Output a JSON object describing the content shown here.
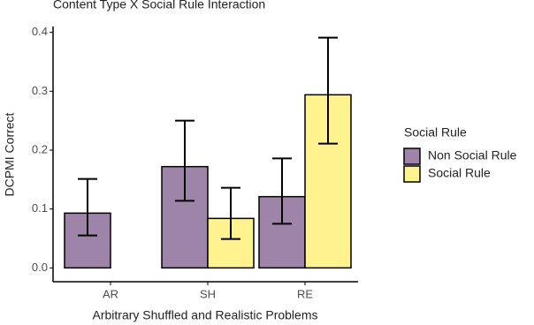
{
  "chart_data": {
    "type": "bar",
    "title": "Content Type X Social Rule Interaction",
    "x_label": "Arbitrary Shuffled and Realistic Problems",
    "y_label": "DCPMI Correct",
    "categories": [
      "AR",
      "SH",
      "RE"
    ],
    "series": [
      {
        "name": "Non Social Rule",
        "color": "#9e84a9",
        "values": [
          0.093,
          0.172,
          0.121
        ],
        "lower": [
          0.055,
          0.114,
          0.075
        ],
        "upper": [
          0.151,
          0.25,
          0.186
        ]
      },
      {
        "name": "Social Rule",
        "color": "#fff28f",
        "values": [
          null,
          0.084,
          0.294
        ],
        "lower": [
          null,
          0.049,
          0.211
        ],
        "upper": [
          null,
          0.136,
          0.391
        ]
      }
    ],
    "legend_title": "Social Rule",
    "legend": "right",
    "ylim": [
      -0.022,
      0.41
    ],
    "yticks": [
      {
        "value": 0,
        "label": "0.0"
      },
      0.1,
      0.2,
      0.3,
      0.4
    ],
    "grid": false
  }
}
